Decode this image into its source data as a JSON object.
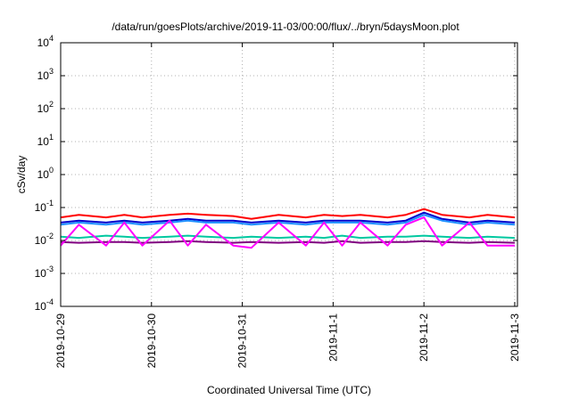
{
  "chart_data": {
    "type": "line",
    "title": "/data/run/goesPlots/archive/2019-11-03/00:00/flux/../bryn/5daysMoon.plot",
    "xlabel": "Coordinated Universal Time (UTC)",
    "ylabel": "cSv/day",
    "yscale": "log",
    "ylim_exponent": [
      -4,
      4
    ],
    "ytick_exponents": [
      -4,
      -3,
      -2,
      -1,
      0,
      1,
      2,
      3,
      4
    ],
    "ytick_base": "10",
    "x_tick_labels": [
      "2019-10-29",
      "2019-10-30",
      "2019-10-31",
      "2019-11-1",
      "2019-11-2",
      "2019-11-3"
    ],
    "x_range_days": [
      0,
      5.03
    ],
    "grid": true,
    "legend": "none",
    "series": [
      {
        "color": "#ff0000",
        "x": [
          0.0,
          0.2,
          0.5,
          0.7,
          0.9,
          1.2,
          1.4,
          1.6,
          1.9,
          2.1,
          2.4,
          2.7,
          2.9,
          3.1,
          3.3,
          3.6,
          3.8,
          4.0,
          4.2,
          4.5,
          4.7,
          5.0
        ],
        "y": [
          0.05,
          0.06,
          0.05,
          0.06,
          0.05,
          0.06,
          0.065,
          0.06,
          0.055,
          0.045,
          0.06,
          0.05,
          0.06,
          0.055,
          0.06,
          0.05,
          0.06,
          0.09,
          0.06,
          0.05,
          0.06,
          0.05
        ]
      },
      {
        "color": "#0000cc",
        "x": [
          0.0,
          0.2,
          0.5,
          0.7,
          0.9,
          1.2,
          1.4,
          1.6,
          1.9,
          2.1,
          2.4,
          2.7,
          2.9,
          3.1,
          3.3,
          3.6,
          3.8,
          4.0,
          4.2,
          4.5,
          4.7,
          5.0
        ],
        "y": [
          0.035,
          0.04,
          0.035,
          0.04,
          0.035,
          0.04,
          0.045,
          0.04,
          0.04,
          0.035,
          0.04,
          0.035,
          0.04,
          0.04,
          0.04,
          0.035,
          0.04,
          0.07,
          0.045,
          0.035,
          0.04,
          0.035
        ]
      },
      {
        "color": "#1e90ff",
        "x": [
          0.0,
          0.2,
          0.5,
          0.7,
          0.9,
          1.2,
          1.4,
          1.6,
          1.9,
          2.1,
          2.4,
          2.7,
          2.9,
          3.1,
          3.3,
          3.6,
          3.8,
          4.0,
          4.2,
          4.5,
          4.7,
          5.0
        ],
        "y": [
          0.03,
          0.035,
          0.03,
          0.035,
          0.03,
          0.035,
          0.04,
          0.035,
          0.035,
          0.03,
          0.035,
          0.03,
          0.035,
          0.035,
          0.035,
          0.03,
          0.035,
          0.06,
          0.04,
          0.03,
          0.035,
          0.03
        ]
      },
      {
        "color": "#00c8a0",
        "x": [
          0.0,
          0.2,
          0.5,
          0.7,
          0.9,
          1.2,
          1.4,
          1.6,
          1.9,
          2.1,
          2.4,
          2.7,
          2.9,
          3.1,
          3.3,
          3.6,
          3.8,
          4.0,
          4.2,
          4.5,
          4.7,
          5.0
        ],
        "y": [
          0.013,
          0.012,
          0.014,
          0.013,
          0.012,
          0.013,
          0.014,
          0.013,
          0.012,
          0.013,
          0.012,
          0.013,
          0.012,
          0.014,
          0.012,
          0.013,
          0.013,
          0.014,
          0.013,
          0.012,
          0.013,
          0.012
        ]
      },
      {
        "color": "#800080",
        "x": [
          0.0,
          0.2,
          0.5,
          0.7,
          0.9,
          1.2,
          1.4,
          1.6,
          1.9,
          2.1,
          2.4,
          2.7,
          2.9,
          3.1,
          3.3,
          3.6,
          3.8,
          4.0,
          4.2,
          4.5,
          4.7,
          5.0
        ],
        "y": [
          0.009,
          0.0085,
          0.009,
          0.009,
          0.0085,
          0.009,
          0.0095,
          0.009,
          0.0085,
          0.009,
          0.0085,
          0.009,
          0.0085,
          0.0095,
          0.0085,
          0.009,
          0.009,
          0.0095,
          0.009,
          0.0085,
          0.009,
          0.0085
        ]
      },
      {
        "color": "#ff00ff",
        "x": [
          0.0,
          0.2,
          0.5,
          0.7,
          0.9,
          1.2,
          1.4,
          1.6,
          1.9,
          2.1,
          2.4,
          2.7,
          2.9,
          3.1,
          3.3,
          3.6,
          3.8,
          4.0,
          4.2,
          4.5,
          4.7,
          5.0
        ],
        "y": [
          0.007,
          0.03,
          0.007,
          0.035,
          0.007,
          0.04,
          0.007,
          0.03,
          0.007,
          0.006,
          0.035,
          0.007,
          0.035,
          0.007,
          0.035,
          0.007,
          0.03,
          0.05,
          0.007,
          0.035,
          0.007,
          0.007
        ]
      }
    ]
  }
}
